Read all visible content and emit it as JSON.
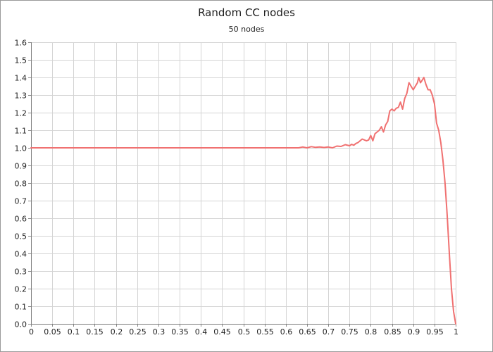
{
  "chart_data": {
    "type": "line",
    "title": "Random CC nodes",
    "subtitle": "50 nodes",
    "xlabel": "",
    "ylabel": "",
    "xlim": [
      0,
      1
    ],
    "ylim": [
      0,
      1.6
    ],
    "grid": true,
    "legend": "none",
    "x_ticks": [
      "0",
      "0.05",
      "0.1",
      "0.15",
      "0.2",
      "0.25",
      "0.3",
      "0.35",
      "0.4",
      "0.45",
      "0.5",
      "0.55",
      "0.6",
      "0.65",
      "0.7",
      "0.75",
      "0.8",
      "0.85",
      "0.9",
      "0.95",
      "1"
    ],
    "y_ticks": [
      "0.0",
      "0.1",
      "0.2",
      "0.3",
      "0.4",
      "0.5",
      "0.6",
      "0.7",
      "0.8",
      "0.9",
      "1.0",
      "1.1",
      "1.2",
      "1.3",
      "1.4",
      "1.5",
      "1.6"
    ],
    "series": [
      {
        "color": "#f07171",
        "x": [
          0,
          0.05,
          0.1,
          0.15,
          0.2,
          0.25,
          0.3,
          0.35,
          0.4,
          0.45,
          0.5,
          0.55,
          0.6,
          0.62,
          0.63,
          0.64,
          0.65,
          0.66,
          0.67,
          0.68,
          0.69,
          0.7,
          0.71,
          0.72,
          0.73,
          0.74,
          0.75,
          0.755,
          0.76,
          0.765,
          0.77,
          0.775,
          0.78,
          0.785,
          0.79,
          0.795,
          0.8,
          0.805,
          0.81,
          0.815,
          0.82,
          0.825,
          0.83,
          0.835,
          0.84,
          0.845,
          0.85,
          0.855,
          0.86,
          0.865,
          0.87,
          0.875,
          0.88,
          0.885,
          0.89,
          0.895,
          0.9,
          0.905,
          0.91,
          0.913,
          0.917,
          0.92,
          0.925,
          0.93,
          0.935,
          0.94,
          0.945,
          0.95,
          0.955,
          0.96,
          0.965,
          0.97,
          0.975,
          0.98,
          0.985,
          0.99,
          0.995,
          1.0
        ],
        "y": [
          1.0,
          1.0,
          1.0,
          1.0,
          1.0,
          1.0,
          1.0,
          1.0,
          1.0,
          1.0,
          1.0,
          1.0,
          1.0,
          1.0,
          1.0,
          1.005,
          1.0,
          1.007,
          1.003,
          1.005,
          1.002,
          1.005,
          1.0,
          1.01,
          1.008,
          1.018,
          1.012,
          1.02,
          1.015,
          1.025,
          1.03,
          1.04,
          1.05,
          1.045,
          1.04,
          1.045,
          1.07,
          1.04,
          1.08,
          1.09,
          1.1,
          1.12,
          1.09,
          1.13,
          1.15,
          1.21,
          1.22,
          1.21,
          1.225,
          1.23,
          1.26,
          1.22,
          1.28,
          1.31,
          1.37,
          1.35,
          1.33,
          1.35,
          1.37,
          1.4,
          1.37,
          1.38,
          1.4,
          1.36,
          1.33,
          1.33,
          1.3,
          1.25,
          1.14,
          1.1,
          1.03,
          0.93,
          0.8,
          0.62,
          0.4,
          0.2,
          0.07,
          0.0
        ]
      }
    ]
  }
}
